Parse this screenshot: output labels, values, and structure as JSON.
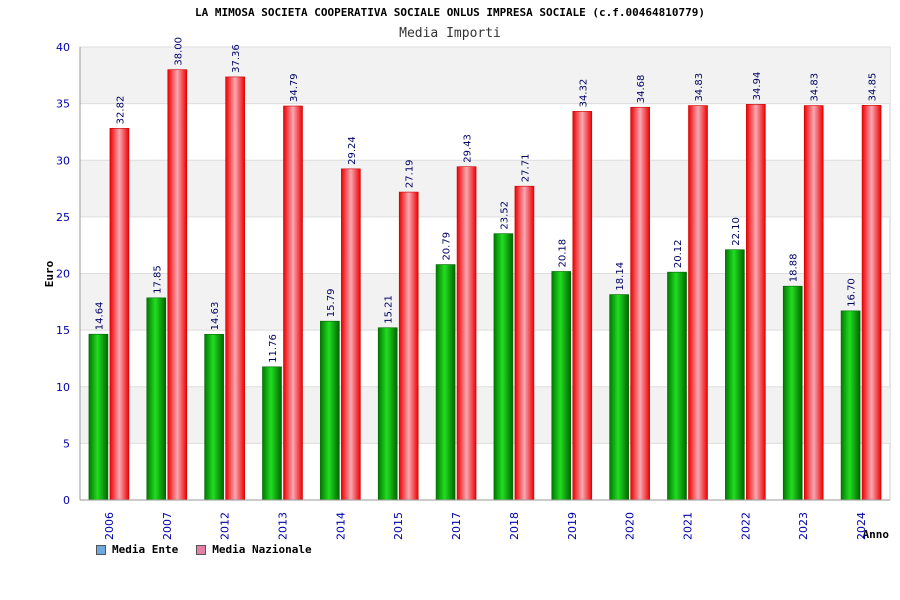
{
  "title": "LA MIMOSA SOCIETA COOPERATIVA SOCIALE ONLUS IMPRESA SOCIALE (c.f.00464810779)",
  "subtitle": "Media Importi",
  "legend": {
    "items": [
      {
        "label": "Media Ente",
        "color": "#6fa8dc"
      },
      {
        "label": "Media Nazionale",
        "color": "#e67fa6"
      }
    ]
  },
  "chart_data": {
    "type": "bar",
    "categories": [
      "2006",
      "2007",
      "2012",
      "2013",
      "2014",
      "2015",
      "2017",
      "2018",
      "2019",
      "2020",
      "2021",
      "2022",
      "2023",
      "2024"
    ],
    "series": [
      {
        "name": "Media Ente",
        "color": "#00a800",
        "values": [
          14.64,
          17.85,
          14.63,
          11.76,
          15.79,
          15.21,
          20.79,
          23.52,
          20.18,
          18.14,
          20.12,
          22.1,
          18.88,
          16.7
        ],
        "labels": [
          "14.64",
          "17.85",
          "14.63",
          "11.76",
          "15.79",
          "15.21",
          "20.79",
          "23.52",
          "20.18",
          "18.14",
          "20.12",
          "22.10",
          "18.88",
          "16.70"
        ]
      },
      {
        "name": "Media Nazionale",
        "color": "#ee1111",
        "values": [
          32.82,
          38.0,
          37.36,
          34.79,
          29.24,
          27.19,
          29.43,
          27.71,
          34.32,
          34.68,
          34.83,
          34.94,
          34.83,
          34.85
        ],
        "labels": [
          "32.82",
          "38.00",
          "37.36",
          "34.79",
          "29.24",
          "27.19",
          "29.43",
          "27.71",
          "34.32",
          "34.68",
          "34.83",
          "34.94",
          "34.83",
          "34.85"
        ]
      }
    ],
    "xlabel": "Anno",
    "ylabel": "Euro",
    "ylim": [
      0,
      40
    ],
    "yticks": [
      0,
      5,
      10,
      15,
      20,
      25,
      30,
      35,
      40
    ],
    "grid": true
  }
}
